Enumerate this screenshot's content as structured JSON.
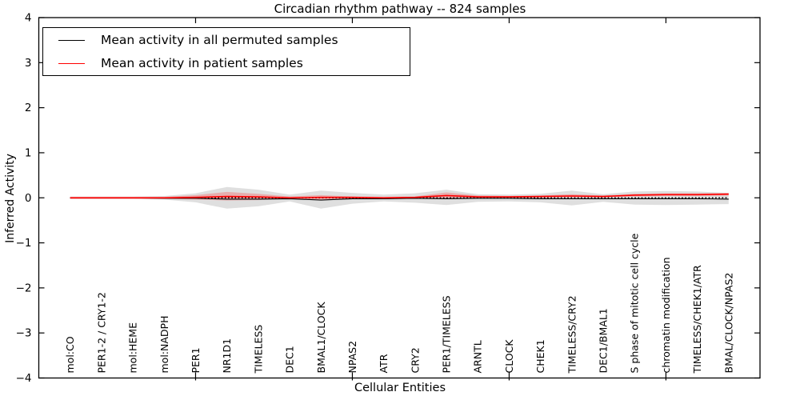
{
  "figure": {
    "title": "Circadian rhythm pathway -- 824 samples",
    "xlabel": "Cellular Entities",
    "ylabel": "Inferred Activity"
  },
  "legend": {
    "items": [
      {
        "label": "Mean activity in all permuted samples",
        "color": "#000000"
      },
      {
        "label": "Mean activity in patient samples",
        "color": "#ff0000"
      }
    ]
  },
  "chart_data": {
    "type": "line",
    "title": "Circadian rhythm pathway -- 824 samples",
    "xlabel": "Cellular Entities",
    "ylabel": "Inferred Activity",
    "ylim": [
      -4,
      4
    ],
    "grid": false,
    "legend_position": "upper left",
    "y_tick_values": [
      4,
      3,
      2,
      1,
      0,
      -1,
      -2,
      -3,
      -4
    ],
    "y_tick_labels": [
      "4",
      "3",
      "2",
      "1",
      "0",
      "−1",
      "−2",
      "−3",
      "−4"
    ],
    "x_major_tick_positions": [
      5,
      10,
      15,
      20
    ],
    "categories": [
      "mol:CO",
      "PER1-2 / CRY1-2",
      "mol:HEME",
      "mol:NADPH",
      "PER1",
      "NR1D1",
      "TIMELESS",
      "DEC1",
      "BMAL1/CLOCK",
      "NPAS2",
      "ATR",
      "CRY2",
      "PER1/TIMELESS",
      "ARNTL",
      "CLOCK",
      "CHEK1",
      "TIMELESS/CRY2",
      "DEC1/BMAL1",
      "S phase of mitotic cell cycle",
      "chromatin modification",
      "TIMELESS/CHEK1/ATR",
      "BMAL/CLOCK/NPAS2"
    ],
    "series": [
      {
        "name": "Mean activity in all permuted samples",
        "color": "#000000",
        "width": 1.1,
        "values": [
          0.0,
          0.0,
          0.0,
          -0.01,
          -0.01,
          -0.03,
          -0.03,
          -0.02,
          -0.05,
          -0.02,
          -0.02,
          -0.01,
          -0.02,
          -0.01,
          -0.01,
          -0.02,
          -0.02,
          -0.02,
          -0.02,
          -0.02,
          -0.02,
          -0.03
        ]
      },
      {
        "name": "Mean activity in patient samples",
        "color": "#ff0000",
        "width": 1.6,
        "values": [
          0.0,
          0.0,
          0.0,
          0.0,
          0.01,
          0.03,
          0.02,
          0.0,
          0.01,
          0.01,
          0.0,
          0.01,
          0.05,
          0.02,
          0.02,
          0.03,
          0.04,
          0.03,
          0.06,
          0.07,
          0.07,
          0.08
        ]
      }
    ],
    "bands": [
      {
        "name": "permuted-samples-range",
        "color": "#aaaaaa",
        "opacity": 0.38,
        "upper": [
          0.03,
          0.03,
          0.03,
          0.04,
          0.1,
          0.24,
          0.18,
          0.07,
          0.16,
          0.11,
          0.07,
          0.1,
          0.18,
          0.08,
          0.07,
          0.09,
          0.16,
          0.08,
          0.14,
          0.15,
          0.14,
          0.11
        ],
        "lower": [
          -0.03,
          -0.03,
          -0.03,
          -0.04,
          -0.1,
          -0.24,
          -0.19,
          -0.08,
          -0.24,
          -0.13,
          -0.08,
          -0.11,
          -0.16,
          -0.09,
          -0.08,
          -0.1,
          -0.17,
          -0.09,
          -0.15,
          -0.16,
          -0.15,
          -0.14
        ]
      },
      {
        "name": "patient-samples-range",
        "color": "#ff0000",
        "opacity": 0.22,
        "upper": [
          0.02,
          0.02,
          0.02,
          0.02,
          0.06,
          0.13,
          0.09,
          0.03,
          0.06,
          0.03,
          0.02,
          0.03,
          0.12,
          0.05,
          0.04,
          0.05,
          0.08,
          0.05,
          0.09,
          0.1,
          0.1,
          0.11
        ],
        "lower": [
          -0.02,
          -0.02,
          -0.02,
          -0.02,
          -0.04,
          -0.06,
          -0.05,
          -0.02,
          -0.05,
          -0.02,
          -0.01,
          -0.01,
          -0.02,
          -0.01,
          0.0,
          0.0,
          0.01,
          0.01,
          0.03,
          0.04,
          0.04,
          0.05
        ]
      }
    ],
    "zero_line": {
      "y": 0,
      "style": "dotted",
      "color": "#000000"
    }
  }
}
